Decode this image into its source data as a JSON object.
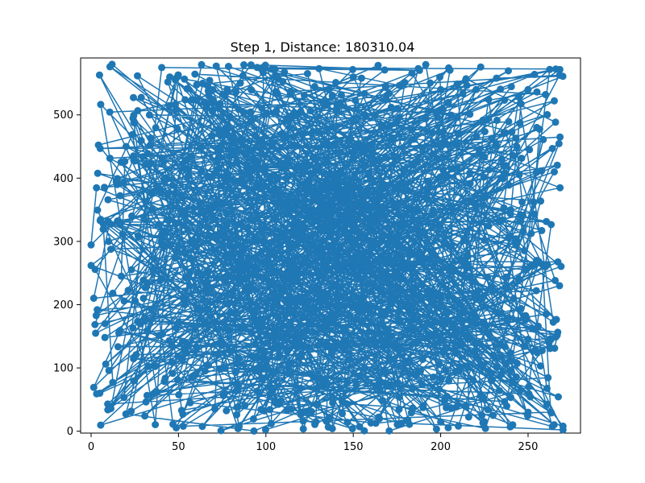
{
  "chart_data": {
    "type": "line",
    "title": "Step 1, Distance: 180310.04",
    "xlabel": "",
    "ylabel": "",
    "xlim": [
      -6.0,
      280.0
    ],
    "ylim": [
      -3.0,
      590.0
    ],
    "x_ticks": [
      0,
      50,
      100,
      150,
      200,
      250
    ],
    "y_ticks": [
      0,
      100,
      200,
      300,
      400,
      500
    ],
    "grid": false,
    "marker": "circle",
    "series": [
      {
        "color": "#1f77b4",
        "points_note_count": 1000,
        "points": [
          [
            12,
            580
          ],
          [
            250,
            30
          ],
          [
            70,
            520
          ],
          [
            190,
            40
          ],
          [
            265,
            410
          ],
          [
            8,
            170
          ],
          [
            150,
            560
          ],
          [
            230,
            120
          ],
          [
            40,
            300
          ],
          [
            210,
            470
          ],
          [
            120,
            30
          ],
          [
            260,
            260
          ],
          [
            20,
            450
          ],
          [
            180,
            200
          ],
          [
            95,
            575
          ],
          [
            240,
            350
          ],
          [
            5,
            60
          ],
          [
            160,
            400
          ],
          [
            270,
            8
          ],
          [
            30,
            210
          ],
          [
            200,
            540
          ],
          [
            110,
            150
          ],
          [
            255,
            480
          ],
          [
            60,
            90
          ],
          [
            140,
            330
          ],
          [
            225,
            15
          ],
          [
            15,
            390
          ],
          [
            175,
            510
          ],
          [
            85,
            240
          ],
          [
            262,
            140
          ],
          [
            45,
            560
          ],
          [
            195,
            280
          ],
          [
            130,
            70
          ],
          [
            250,
            540
          ],
          [
            10,
            300
          ],
          [
            165,
            20
          ],
          [
            235,
            430
          ],
          [
            75,
            360
          ],
          [
            118,
            500
          ],
          [
            268,
            230
          ]
        ]
      }
    ]
  }
}
